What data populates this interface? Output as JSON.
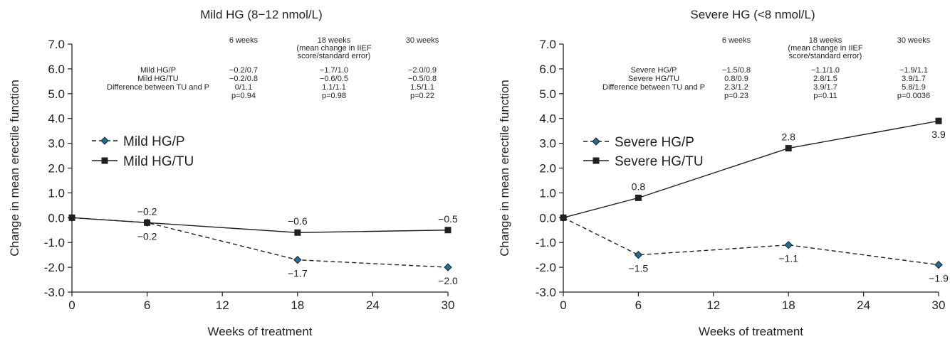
{
  "chart_data": [
    {
      "type": "line",
      "title": "Mild HG (8−12 nmol/L)",
      "xlabel": "Weeks of treatment",
      "ylabel": "Change in mean erectile function",
      "xlim": [
        0,
        30
      ],
      "ylim": [
        -3.0,
        7.0
      ],
      "xticks": [
        "0",
        "6",
        "12",
        "18",
        "24",
        "30"
      ],
      "yticks": [
        "7.0",
        "6.0",
        "5.0",
        "4.0",
        "3.0",
        "2.0",
        "1.0",
        "0.0",
        "-1.0",
        "-2.0",
        "-3.0"
      ],
      "grid": false,
      "legend_position": "left",
      "series": [
        {
          "name": "Mild HG/P",
          "marker": "diamond",
          "line_style": "dashed",
          "x": [
            0,
            6,
            18,
            30
          ],
          "y": [
            0.0,
            -0.2,
            -1.7,
            -2.0
          ],
          "labels": [
            "",
            "−0.2",
            "−1.7",
            "−2.0"
          ],
          "label_pos": [
            "",
            "below",
            "below",
            "below"
          ]
        },
        {
          "name": "Mild HG/TU",
          "marker": "square",
          "line_style": "solid",
          "x": [
            0,
            6,
            18,
            30
          ],
          "y": [
            0.0,
            -0.2,
            -0.6,
            -0.5
          ],
          "labels": [
            "",
            "−0.2",
            "−0.6",
            "−0.5"
          ],
          "label_pos": [
            "",
            "above",
            "above",
            "above"
          ]
        }
      ],
      "table": {
        "col_headers": [
          [
            "6 weeks"
          ],
          [
            "18 weeks",
            "(mean change in IIEF",
            "score/standard error)"
          ],
          [
            "30 weeks"
          ]
        ],
        "rows": [
          {
            "label": "Mild HG/P",
            "values": [
              "−0.2/0.7",
              "−1.7/1.0",
              "−2.0/0.9"
            ]
          },
          {
            "label": "Mild HG/TU",
            "values": [
              "−0.2/0.8",
              "−0.6/0.5",
              "−0.5/0.8"
            ]
          },
          {
            "label": "Difference between TU and P",
            "values": [
              "0/1.1",
              "1.1/1.1",
              "1.5/1.1"
            ]
          },
          {
            "label": "",
            "values": [
              "p=0.94",
              "p=0.98",
              "p=0.22"
            ]
          }
        ]
      }
    },
    {
      "type": "line",
      "title": "Severe HG (<8 nmol/L)",
      "xlabel": "Weeks of treatment",
      "ylabel": "Change in mean erectile function",
      "xlim": [
        0,
        30
      ],
      "ylim": [
        -3.0,
        7.0
      ],
      "xticks": [
        "0",
        "6",
        "12",
        "18",
        "24",
        "30"
      ],
      "yticks": [
        "7.0",
        "6.0",
        "5.0",
        "4.0",
        "3.0",
        "2.0",
        "1.0",
        "0.0",
        "-1.0",
        "-2.0",
        "-3.0"
      ],
      "grid": false,
      "legend_position": "left",
      "series": [
        {
          "name": "Severe HG/P",
          "marker": "diamond",
          "line_style": "dashed",
          "x": [
            0,
            6,
            18,
            30
          ],
          "y": [
            0.0,
            -1.5,
            -1.1,
            -1.9
          ],
          "labels": [
            "",
            "−1.5",
            "−1.1",
            "−1.9"
          ],
          "label_pos": [
            "",
            "below",
            "below",
            "below"
          ]
        },
        {
          "name": "Severe HG/TU",
          "marker": "square",
          "line_style": "solid",
          "x": [
            0,
            6,
            18,
            30
          ],
          "y": [
            0.0,
            0.8,
            2.8,
            3.9
          ],
          "labels": [
            "",
            "0.8",
            "2.8",
            "3.9"
          ],
          "label_pos": [
            "",
            "above",
            "above",
            "below"
          ]
        }
      ],
      "table": {
        "col_headers": [
          [
            "6 weeks"
          ],
          [
            "18 weeks",
            "(mean change in IIEF",
            "score/standard error)"
          ],
          [
            "30 weeks"
          ]
        ],
        "rows": [
          {
            "label": "Severe HG/P",
            "values": [
              "−1.5/0.8",
              "−1.1/1.0",
              "−1.9/1.1"
            ]
          },
          {
            "label": "Severe HG/TU",
            "values": [
              "0.8/0.9",
              "2.8/1.5",
              "3.9/1.7"
            ]
          },
          {
            "label": "Difference between TU and P",
            "values": [
              "2.3/1.2",
              "3.9/1.7",
              "5.8/1.9"
            ]
          },
          {
            "label": "",
            "values": [
              "p=0.23",
              "p=0.11",
              "p=0.0036"
            ]
          }
        ]
      }
    }
  ],
  "colors": {
    "axis": "#231f20",
    "line": "#231f20",
    "diamond_fill": "#1c6f96",
    "diamond_edge": "#231f20",
    "square_fill": "#231f20"
  }
}
